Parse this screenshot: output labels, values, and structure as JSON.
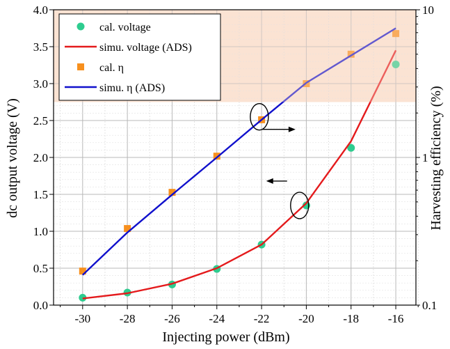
{
  "chart_data": {
    "type": "line",
    "title": "",
    "xlabel": "Injecting power (dBm)",
    "ylabel": "dc output voltage (V)",
    "y2label": "Harvesting efficiency (%)",
    "x": [
      -30,
      -28,
      -26,
      -24,
      -22,
      -20,
      -18,
      -16
    ],
    "xlim": [
      -31.3,
      -15.1
    ],
    "ylim": [
      0.0,
      4.0
    ],
    "y2lim": [
      0.1,
      10
    ],
    "y2scale": "log",
    "xticks": [
      "-30",
      "-28",
      "-26",
      "-24",
      "-22",
      "-20",
      "-18",
      "-16"
    ],
    "yticks": [
      "0.0",
      "0.5",
      "1.0",
      "1.5",
      "2.0",
      "2.5",
      "3.0",
      "3.5",
      "4.0"
    ],
    "y2ticks": [
      "0.1",
      "1",
      "10"
    ],
    "grid": true,
    "legend_position": "top-left",
    "highlight_band": {
      "y_from": 2.75,
      "y_to": 4.0,
      "color": "#fbe3d3"
    },
    "series": [
      {
        "name": "cal. voltage",
        "axis": "left",
        "kind": "markers",
        "marker": "circle",
        "color": "#2ecc8f",
        "values": [
          0.1,
          0.17,
          0.28,
          0.49,
          0.82,
          1.35,
          2.13,
          3.26
        ]
      },
      {
        "name": "simu. voltage (ADS)",
        "axis": "left",
        "kind": "line",
        "color": "#e41a1c",
        "values": [
          0.09,
          0.16,
          0.29,
          0.5,
          0.82,
          1.38,
          2.22,
          3.45
        ]
      },
      {
        "name": "cal. η",
        "axis": "right",
        "kind": "markers",
        "marker": "square",
        "color": "#f7901e",
        "values": [
          0.17,
          0.33,
          0.58,
          1.02,
          1.8,
          3.16,
          5.0,
          6.9
        ]
      },
      {
        "name": "simu. η (ADS)",
        "axis": "right",
        "kind": "line",
        "color": "#1010cc",
        "values": [
          0.16,
          0.31,
          0.56,
          1.0,
          1.8,
          3.2,
          4.9,
          7.5
        ]
      }
    ],
    "annotations": [
      {
        "text": "",
        "target": "voltage",
        "arrow": "left",
        "at": {
          "x": -20.3,
          "y": 1.35
        }
      },
      {
        "text": "",
        "target": "efficiency",
        "arrow": "right",
        "at": {
          "x": -22.1,
          "y": 2.55
        }
      }
    ]
  }
}
